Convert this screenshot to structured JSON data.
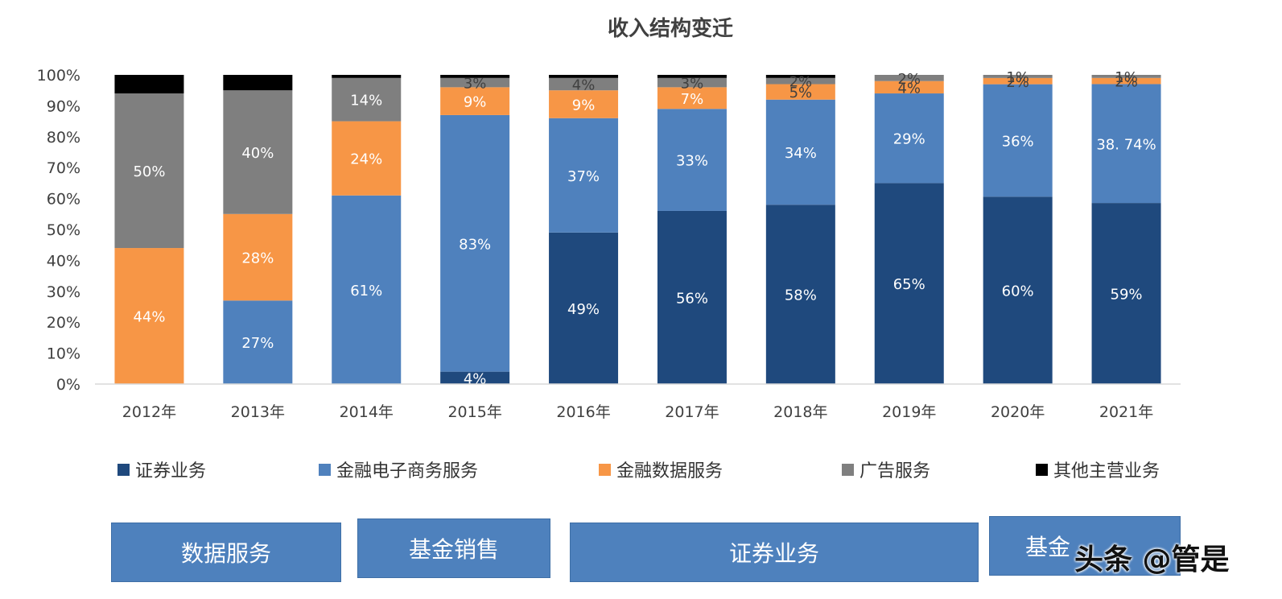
{
  "chart_data": {
    "type": "bar",
    "stacked": true,
    "title": "收入结构变迁",
    "categories": [
      "2012年",
      "2013年",
      "2014年",
      "2015年",
      "2016年",
      "2017年",
      "2018年",
      "2019年",
      "2020年",
      "2021年"
    ],
    "y_ticks": [
      "0%",
      "10%",
      "20%",
      "30%",
      "40%",
      "50%",
      "60%",
      "70%",
      "80%",
      "90%",
      "100%"
    ],
    "ylim": [
      0,
      100
    ],
    "legend_position": "bottom",
    "series": [
      {
        "name": "证券业务",
        "color": "#1f497d",
        "values": [
          0,
          0,
          0,
          4,
          49,
          56,
          58,
          65,
          60,
          59
        ],
        "labels": [
          "",
          "",
          "",
          "4%",
          "49%",
          "56%",
          "58%",
          "65%",
          "60%",
          "59%"
        ]
      },
      {
        "name": "金融电子商务服务",
        "color": "#4f81bd",
        "values": [
          0,
          27,
          61,
          83,
          37,
          33,
          34,
          29,
          36,
          38.74
        ],
        "labels": [
          "",
          "27%",
          "61%",
          "83%",
          "37%",
          "33%",
          "34%",
          "29%",
          "36%",
          "38. 74%"
        ]
      },
      {
        "name": "金融数据服务",
        "color": "#f79646",
        "values": [
          44,
          28,
          24,
          9,
          9,
          7,
          5,
          4,
          2,
          2
        ],
        "labels": [
          "44%",
          "28%",
          "24%",
          "9%",
          "9%",
          "7%",
          "5%",
          "4%",
          "2%",
          "2%"
        ]
      },
      {
        "name": "广告服务",
        "color": "#7f7f7f",
        "values": [
          50,
          40,
          14,
          3,
          4,
          3,
          2,
          2,
          1,
          1
        ],
        "labels": [
          "50%",
          "40%",
          "14%",
          "3%",
          "4%",
          "3%",
          "2%",
          "2%",
          "1%",
          "1%"
        ]
      },
      {
        "name": "其他主营业务",
        "color": "#000000",
        "values": [
          6,
          5,
          1,
          1,
          1,
          1,
          1,
          0,
          0,
          0
        ],
        "labels": [
          "",
          "",
          "",
          "",
          "",
          "",
          "",
          "",
          "",
          ""
        ]
      }
    ]
  },
  "bottom_boxes": [
    {
      "label": "数据服务"
    },
    {
      "label": "基金销售"
    },
    {
      "label": "证券业务"
    },
    {
      "label": "基金"
    }
  ],
  "watermark": "头条 @管是"
}
